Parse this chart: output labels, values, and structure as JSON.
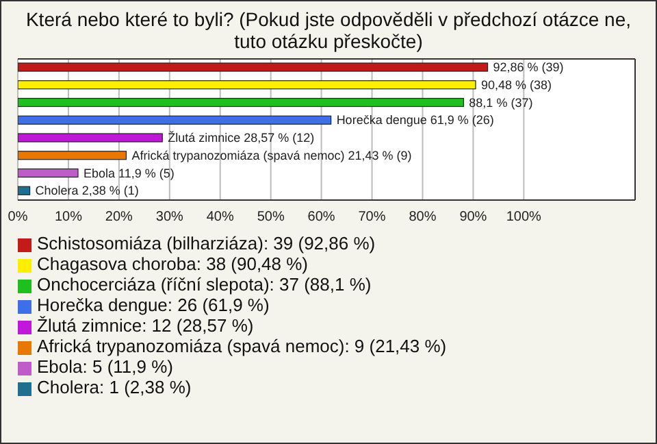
{
  "chart_data": {
    "type": "bar",
    "orientation": "horizontal",
    "title": "Která nebo které to byli? (Pokud jste odpověděli v předchozí otázce ne, tuto otázku přeskočte)",
    "categories": [
      null,
      null,
      null,
      null,
      null,
      null,
      null,
      null
    ],
    "series": [
      {
        "name": "Schistosomiáza (bilharziáza): 39 (92,86 %)",
        "color": "#c41a1a",
        "values": [
          92.86,
          null,
          null,
          null,
          null,
          null,
          null,
          null
        ],
        "value_labels": [
          "92,86 % (39)",
          null,
          null,
          null,
          null,
          null,
          null,
          null
        ]
      },
      {
        "name": "Chagasova choroba: 38 (90,48 %)",
        "color": "#ffee00",
        "values": [
          null,
          90.48,
          null,
          null,
          null,
          null,
          null,
          null
        ],
        "value_labels": [
          null,
          "90,48 % (38)",
          null,
          null,
          null,
          null,
          null,
          null
        ]
      },
      {
        "name": "Onchocerciáza (říční slepota): 37 (88,1 %)",
        "color": "#1fbf1f",
        "values": [
          null,
          null,
          88.1,
          null,
          null,
          null,
          null,
          null
        ],
        "value_labels": [
          null,
          null,
          "88,1 % (37)",
          null,
          null,
          null,
          null,
          null
        ]
      },
      {
        "name": "Horečka dengue: 26 (61,9 %)",
        "color": "#3f6fe8",
        "values": [
          null,
          null,
          null,
          61.9,
          null,
          null,
          null,
          null
        ],
        "value_labels": [
          null,
          null,
          null,
          "Horečka dengue 61,9 % (26)",
          null,
          null,
          null,
          null
        ]
      },
      {
        "name": "Žlutá zimnice: 12 (28,57 %)",
        "color": "#c018d8",
        "values": [
          null,
          null,
          null,
          null,
          28.57,
          null,
          null,
          null
        ],
        "value_labels": [
          null,
          null,
          null,
          null,
          "Žlutá zimnice 28,57 % (12)",
          null,
          null,
          null
        ]
      },
      {
        "name": "Africká trypanozomiáza (spavá nemoc): 9 (21,43 %)",
        "color": "#e87800",
        "values": [
          null,
          null,
          null,
          null,
          null,
          21.43,
          null,
          null
        ],
        "value_labels": [
          null,
          null,
          null,
          null,
          null,
          "Africká trypanozomiáza (spavá nemoc) 21,43 % (9)",
          null,
          null
        ]
      },
      {
        "name": "Ebola: 5 (11,9 %)",
        "color": "#c05cc8",
        "values": [
          null,
          null,
          null,
          null,
          null,
          null,
          11.9,
          null
        ],
        "value_labels": [
          null,
          null,
          null,
          null,
          null,
          null,
          "Ebola 11,9 % (5)",
          null
        ]
      },
      {
        "name": "Cholera: 1 (2,38 %)",
        "color": "#1f7090",
        "values": [
          null,
          null,
          null,
          null,
          null,
          null,
          null,
          2.38
        ],
        "value_labels": [
          null,
          null,
          null,
          null,
          null,
          null,
          null,
          "Cholera 2,38 % (1)"
        ]
      }
    ],
    "xlim": [
      0,
      122
    ],
    "xticks": [
      {
        "value": 0,
        "label": "0%"
      },
      {
        "value": 10,
        "label": "10%"
      },
      {
        "value": 20,
        "label": "20%"
      },
      {
        "value": 30,
        "label": "30%"
      },
      {
        "value": 40,
        "label": "40%"
      },
      {
        "value": 50,
        "label": "50%"
      },
      {
        "value": 60,
        "label": "60%"
      },
      {
        "value": 70,
        "label": "70%"
      },
      {
        "value": 80,
        "label": "80%"
      },
      {
        "value": 90,
        "label": "90%"
      },
      {
        "value": 100,
        "label": "100%"
      }
    ],
    "grid": "x",
    "legend": "bottom",
    "tick_labels": "x"
  }
}
